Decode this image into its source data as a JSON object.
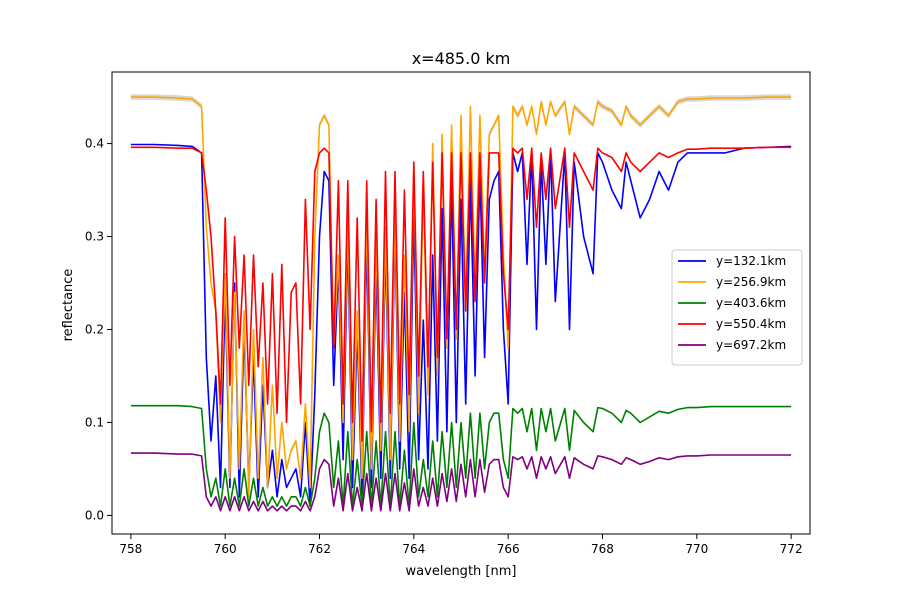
{
  "chart_data": {
    "type": "line",
    "title": "x=485.0 km",
    "xlabel": "wavelength [nm]",
    "ylabel": "reflectance",
    "xlim": [
      757.6,
      772.4
    ],
    "ylim": [
      -0.02,
      0.477
    ],
    "xticks": [
      758,
      760,
      762,
      764,
      766,
      768,
      770,
      772
    ],
    "xtick_labels": [
      "758",
      "760",
      "762",
      "764",
      "766",
      "768",
      "770",
      "772"
    ],
    "yticks": [
      0.0,
      0.1,
      0.2,
      0.3,
      0.4
    ],
    "ytick_labels": [
      "0.0",
      "0.1",
      "0.2",
      "0.3",
      "0.4"
    ],
    "grid": false,
    "legend_position": "center-right",
    "background_band_color": "#c8c8c8",
    "x": [
      758.0,
      758.5,
      759.0,
      759.3,
      759.5,
      759.6,
      759.7,
      759.8,
      759.9,
      760.0,
      760.1,
      760.2,
      760.3,
      760.4,
      760.5,
      760.6,
      760.7,
      760.8,
      760.9,
      761.0,
      761.1,
      761.2,
      761.3,
      761.4,
      761.5,
      761.6,
      761.7,
      761.8,
      761.9,
      762.0,
      762.1,
      762.2,
      762.3,
      762.4,
      762.5,
      762.6,
      762.7,
      762.8,
      762.9,
      763.0,
      763.1,
      763.2,
      763.3,
      763.4,
      763.5,
      763.6,
      763.7,
      763.8,
      763.9,
      764.0,
      764.1,
      764.2,
      764.3,
      764.4,
      764.5,
      764.6,
      764.7,
      764.8,
      764.9,
      765.0,
      765.1,
      765.2,
      765.3,
      765.4,
      765.5,
      765.6,
      765.7,
      765.8,
      765.9,
      766.0,
      766.1,
      766.2,
      766.3,
      766.4,
      766.5,
      766.6,
      766.7,
      766.8,
      766.9,
      767.0,
      767.2,
      767.3,
      767.4,
      767.6,
      767.8,
      767.9,
      768.0,
      768.2,
      768.4,
      768.5,
      768.6,
      768.8,
      769.0,
      769.2,
      769.4,
      769.6,
      769.8,
      770.0,
      770.3,
      770.6,
      771.0,
      771.5,
      772.0
    ],
    "series": [
      {
        "name": "y=132.1km",
        "color": "#0000ff",
        "values": [
          0.399,
          0.399,
          0.398,
          0.397,
          0.39,
          0.17,
          0.08,
          0.15,
          0.03,
          0.24,
          0.03,
          0.25,
          0.02,
          0.2,
          0.03,
          0.17,
          0.02,
          0.14,
          0.03,
          0.07,
          0.02,
          0.06,
          0.03,
          0.04,
          0.05,
          0.02,
          0.1,
          0.01,
          0.13,
          0.3,
          0.37,
          0.36,
          0.14,
          0.27,
          0.06,
          0.3,
          0.03,
          0.2,
          0.02,
          0.3,
          0.03,
          0.27,
          0.04,
          0.29,
          0.04,
          0.31,
          0.05,
          0.24,
          0.04,
          0.33,
          0.06,
          0.21,
          0.05,
          0.28,
          0.08,
          0.33,
          0.09,
          0.36,
          0.1,
          0.34,
          0.12,
          0.36,
          0.15,
          0.37,
          0.17,
          0.34,
          0.36,
          0.37,
          0.2,
          0.12,
          0.39,
          0.37,
          0.39,
          0.27,
          0.39,
          0.2,
          0.38,
          0.27,
          0.39,
          0.23,
          0.39,
          0.2,
          0.38,
          0.3,
          0.26,
          0.39,
          0.38,
          0.35,
          0.33,
          0.38,
          0.36,
          0.32,
          0.34,
          0.37,
          0.35,
          0.38,
          0.39,
          0.39,
          0.39,
          0.39,
          0.395,
          0.396,
          0.397
        ]
      },
      {
        "name": "y=256.9km",
        "color": "#ffa500",
        "values": [
          0.45,
          0.45,
          0.449,
          0.448,
          0.44,
          0.31,
          0.25,
          0.22,
          0.1,
          0.26,
          0.04,
          0.24,
          0.05,
          0.22,
          0.02,
          0.2,
          0.04,
          0.17,
          0.03,
          0.14,
          0.04,
          0.1,
          0.05,
          0.07,
          0.08,
          0.04,
          0.12,
          0.03,
          0.3,
          0.42,
          0.43,
          0.42,
          0.18,
          0.28,
          0.1,
          0.32,
          0.06,
          0.22,
          0.04,
          0.33,
          0.05,
          0.3,
          0.07,
          0.31,
          0.06,
          0.33,
          0.08,
          0.28,
          0.09,
          0.37,
          0.11,
          0.36,
          0.13,
          0.4,
          0.15,
          0.41,
          0.18,
          0.42,
          0.19,
          0.43,
          0.22,
          0.44,
          0.24,
          0.43,
          0.26,
          0.41,
          0.42,
          0.43,
          0.28,
          0.18,
          0.44,
          0.43,
          0.44,
          0.42,
          0.44,
          0.41,
          0.445,
          0.42,
          0.445,
          0.43,
          0.445,
          0.41,
          0.44,
          0.43,
          0.42,
          0.445,
          0.44,
          0.435,
          0.42,
          0.44,
          0.43,
          0.42,
          0.43,
          0.44,
          0.43,
          0.445,
          0.448,
          0.448,
          0.449,
          0.449,
          0.449,
          0.45,
          0.45
        ]
      },
      {
        "name": "y=403.6km",
        "color": "#008000",
        "values": [
          0.118,
          0.118,
          0.118,
          0.117,
          0.115,
          0.05,
          0.02,
          0.04,
          0.01,
          0.05,
          0.01,
          0.04,
          0.01,
          0.05,
          0.01,
          0.04,
          0.01,
          0.03,
          0.01,
          0.02,
          0.01,
          0.02,
          0.01,
          0.02,
          0.02,
          0.01,
          0.03,
          0.01,
          0.04,
          0.09,
          0.11,
          0.1,
          0.03,
          0.08,
          0.01,
          0.09,
          0.01,
          0.06,
          0.01,
          0.09,
          0.01,
          0.08,
          0.01,
          0.09,
          0.01,
          0.09,
          0.01,
          0.07,
          0.01,
          0.1,
          0.02,
          0.06,
          0.02,
          0.08,
          0.02,
          0.09,
          0.03,
          0.1,
          0.03,
          0.1,
          0.04,
          0.11,
          0.04,
          0.11,
          0.05,
          0.1,
          0.11,
          0.11,
          0.06,
          0.04,
          0.115,
          0.11,
          0.115,
          0.09,
          0.115,
          0.07,
          0.115,
          0.09,
          0.115,
          0.08,
          0.115,
          0.07,
          0.113,
          0.1,
          0.09,
          0.116,
          0.115,
          0.11,
          0.1,
          0.113,
          0.11,
          0.1,
          0.106,
          0.112,
          0.11,
          0.114,
          0.116,
          0.116,
          0.117,
          0.117,
          0.117,
          0.117,
          0.117
        ]
      },
      {
        "name": "y=550.4km",
        "color": "#ff0000",
        "values": [
          0.396,
          0.396,
          0.395,
          0.395,
          0.39,
          0.35,
          0.3,
          0.22,
          0.12,
          0.32,
          0.14,
          0.3,
          0.18,
          0.28,
          0.14,
          0.28,
          0.16,
          0.25,
          0.12,
          0.26,
          0.11,
          0.27,
          0.1,
          0.24,
          0.25,
          0.12,
          0.34,
          0.2,
          0.37,
          0.39,
          0.395,
          0.39,
          0.18,
          0.36,
          0.12,
          0.36,
          0.1,
          0.32,
          0.08,
          0.36,
          0.09,
          0.34,
          0.1,
          0.37,
          0.11,
          0.37,
          0.12,
          0.35,
          0.13,
          0.38,
          0.15,
          0.37,
          0.16,
          0.38,
          0.17,
          0.39,
          0.19,
          0.39,
          0.2,
          0.39,
          0.22,
          0.39,
          0.23,
          0.39,
          0.25,
          0.39,
          0.39,
          0.39,
          0.26,
          0.2,
          0.395,
          0.39,
          0.395,
          0.34,
          0.395,
          0.31,
          0.39,
          0.34,
          0.395,
          0.33,
          0.395,
          0.31,
          0.39,
          0.37,
          0.35,
          0.395,
          0.39,
          0.385,
          0.37,
          0.39,
          0.38,
          0.37,
          0.38,
          0.39,
          0.385,
          0.39,
          0.394,
          0.394,
          0.395,
          0.395,
          0.395,
          0.396,
          0.396
        ]
      },
      {
        "name": "y=697.2km",
        "color": "#800080",
        "values": [
          0.067,
          0.067,
          0.066,
          0.066,
          0.064,
          0.02,
          0.01,
          0.02,
          0.005,
          0.02,
          0.005,
          0.02,
          0.005,
          0.02,
          0.005,
          0.015,
          0.005,
          0.015,
          0.005,
          0.01,
          0.005,
          0.01,
          0.005,
          0.01,
          0.01,
          0.005,
          0.015,
          0.005,
          0.02,
          0.05,
          0.06,
          0.055,
          0.01,
          0.04,
          0.005,
          0.045,
          0.005,
          0.03,
          0.005,
          0.045,
          0.005,
          0.04,
          0.005,
          0.045,
          0.005,
          0.045,
          0.005,
          0.035,
          0.005,
          0.05,
          0.01,
          0.03,
          0.01,
          0.04,
          0.01,
          0.045,
          0.015,
          0.05,
          0.015,
          0.055,
          0.02,
          0.06,
          0.02,
          0.06,
          0.025,
          0.055,
          0.06,
          0.06,
          0.03,
          0.02,
          0.063,
          0.06,
          0.063,
          0.05,
          0.063,
          0.04,
          0.063,
          0.05,
          0.063,
          0.045,
          0.063,
          0.04,
          0.062,
          0.055,
          0.05,
          0.064,
          0.063,
          0.06,
          0.055,
          0.062,
          0.06,
          0.055,
          0.058,
          0.062,
          0.06,
          0.063,
          0.064,
          0.064,
          0.065,
          0.065,
          0.065,
          0.065,
          0.065
        ]
      }
    ]
  }
}
